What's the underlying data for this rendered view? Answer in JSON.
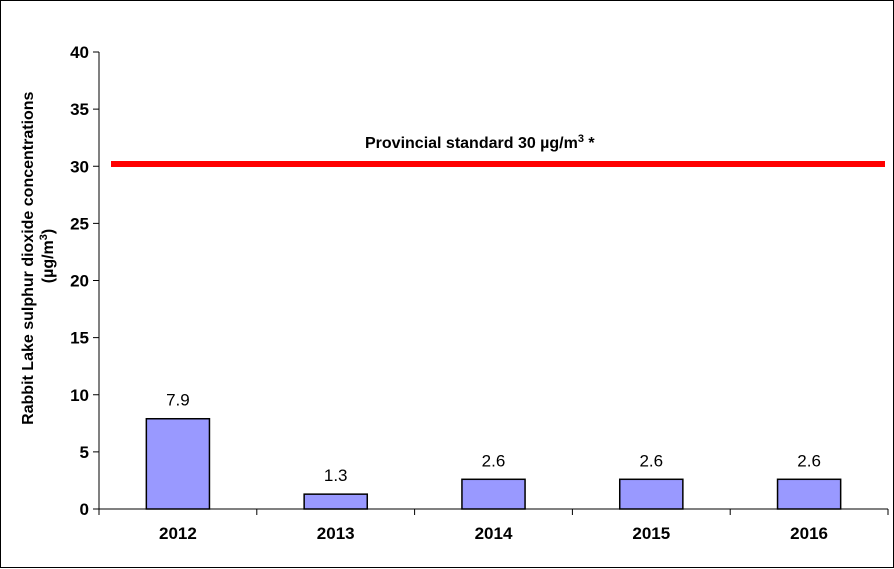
{
  "chart_data": {
    "type": "bar",
    "categories": [
      "2012",
      "2013",
      "2014",
      "2015",
      "2016"
    ],
    "values": [
      7.9,
      1.3,
      2.6,
      2.6,
      2.6
    ],
    "data_labels": [
      "7.9",
      "1.3",
      "2.6",
      "2.6",
      "2.6"
    ],
    "ylabel_line1": "Rabbit Lake sulphur dioxide concentrations",
    "ylabel_line2_prefix": "(µg/m",
    "ylabel_line2_sup": "3",
    "ylabel_line2_suffix": ")",
    "ylim": [
      0,
      40
    ],
    "yticks": [
      0,
      5,
      10,
      15,
      20,
      25,
      30,
      35,
      40
    ],
    "grid": false,
    "bar_color": "#9999ff",
    "reference_line": {
      "value": 30.2,
      "color": "#ff0000",
      "label_prefix": "Provincial standard 30 µg/m",
      "label_sup": "3",
      "label_suffix": " *"
    }
  }
}
